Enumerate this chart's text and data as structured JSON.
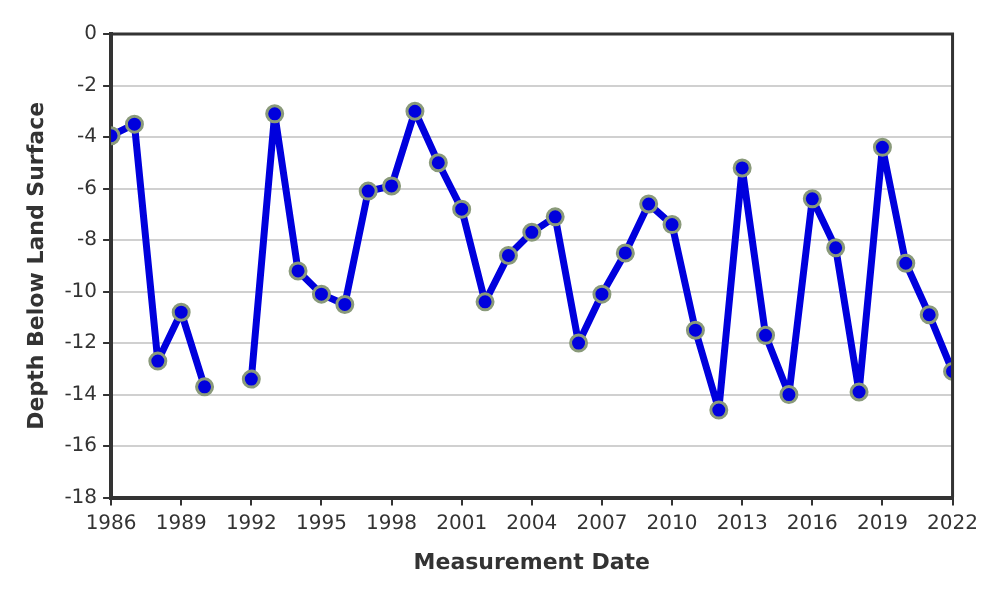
{
  "chart_data": {
    "type": "line",
    "xlabel": "Measurement Date",
    "ylabel": "Depth Below Land Surface",
    "x": [
      1986,
      1987,
      1988,
      1989,
      1990,
      1991,
      1992,
      1993,
      1994,
      1995,
      1996,
      1997,
      1998,
      1999,
      2000,
      2001,
      2002,
      2003,
      2004,
      2005,
      2006,
      2007,
      2008,
      2009,
      2010,
      2011,
      2012,
      2013,
      2014,
      2015,
      2016,
      2017,
      2018,
      2019,
      2020,
      2021,
      2022
    ],
    "series": [
      {
        "color": "#0000dd",
        "values": [
          -3.95,
          -3.5,
          -12.7,
          -10.8,
          -13.7,
          null,
          -13.4,
          -3.1,
          -9.2,
          -10.1,
          -10.5,
          -6.1,
          -5.9,
          -3.0,
          -5.0,
          -6.8,
          -10.4,
          -8.6,
          -7.7,
          -7.1,
          -12.0,
          -10.1,
          -8.5,
          -6.6,
          -7.4,
          -11.5,
          -14.6,
          -5.2,
          -11.7,
          -14.0,
          -6.4,
          -8.3,
          -13.9,
          -4.4,
          -8.9,
          -10.9,
          -13.1
        ]
      }
    ],
    "xlim": [
      1986,
      2022
    ],
    "xticks": [
      1986,
      1989,
      1992,
      1995,
      1998,
      2001,
      2004,
      2007,
      2010,
      2013,
      2016,
      2019,
      2022
    ],
    "ylim": [
      -18,
      0
    ],
    "yticks": [
      -18,
      -16,
      -14,
      -12,
      -10,
      -8,
      -6,
      -4,
      -2,
      0
    ],
    "grid": "y",
    "legend": false,
    "marker": "circle",
    "line_style": "solid"
  }
}
